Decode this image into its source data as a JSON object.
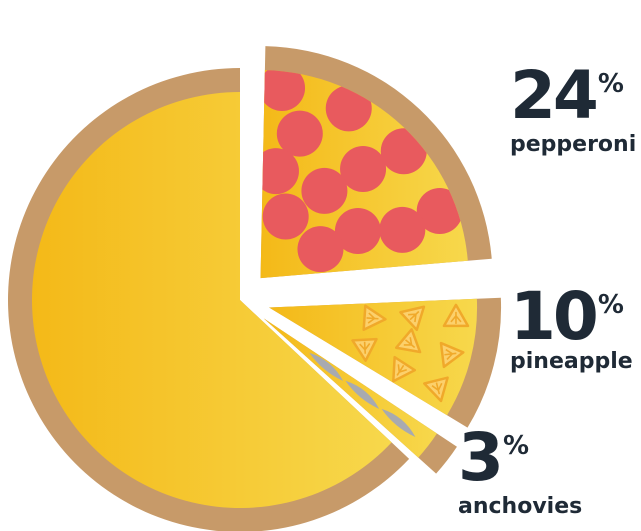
{
  "chart_data": {
    "type": "pie",
    "title": "",
    "percent_sign": "%",
    "slices": [
      {
        "label": "pepperoni",
        "value": 24,
        "topping": "pepperoni",
        "color": "#e85a5e"
      },
      {
        "label": "pineapple",
        "value": 10,
        "topping": "pineapple",
        "color": "#f0a92a"
      },
      {
        "label": "anchovies",
        "value": 3,
        "topping": "anchovies",
        "color": "#a8aab0"
      },
      {
        "label": "",
        "value": 63,
        "topping": "cheese",
        "color": "#f6c21c"
      }
    ]
  },
  "colors": {
    "crust": "#c79a69",
    "cheese_light": "#f7d84c",
    "cheese_dark": "#f4b918",
    "pepperoni": "#e85a5e",
    "pineapple_fill": "#fcd06b",
    "pineapple_stroke": "#f0a92a",
    "anchovy": "#a8aab0",
    "text": "#1f2a36"
  }
}
